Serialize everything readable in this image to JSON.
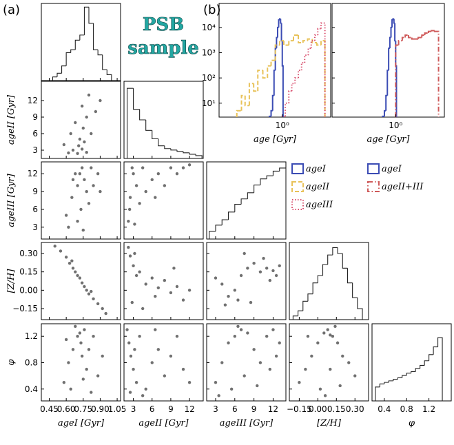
{
  "figure": {
    "panel_a": "(a)",
    "panel_b": "(b)",
    "title_lines": [
      "PSB",
      "sample"
    ]
  },
  "chart_data": [
    {
      "type": "histogram",
      "bins": [
        0.48,
        0.52,
        0.56,
        0.6,
        0.64,
        0.68,
        0.72,
        0.76,
        0.8,
        0.84,
        0.88,
        0.92,
        0.96,
        1.0
      ],
      "values": [
        5,
        10,
        20,
        38,
        42,
        55,
        62,
        100,
        78,
        42,
        35,
        15,
        8
      ],
      "xlim": [
        0.38,
        1.08
      ],
      "ylim": [
        0,
        105
      ],
      "color": "#222222"
    },
    {
      "type": "scatter",
      "x": [
        0.62,
        0.66,
        0.7,
        0.74,
        0.78,
        0.72,
        0.75,
        0.78,
        0.74,
        0.68,
        0.82,
        0.86,
        0.58,
        0.9,
        0.64,
        0.71,
        0.76,
        0.8
      ],
      "y": [
        2.5,
        3.0,
        2.4,
        3.2,
        2.6,
        5.0,
        7.0,
        9.0,
        11.0,
        8.0,
        6.0,
        10.0,
        4.0,
        12.0,
        6.0,
        3.8,
        4.5,
        13.0
      ],
      "xlim": [
        0.38,
        1.08
      ],
      "ylim": [
        1.5,
        15.5
      ],
      "yticks": [
        3,
        6,
        9,
        12
      ],
      "y_label": "ageII [Gyr]",
      "color": "#333333"
    },
    {
      "type": "histogram",
      "bins": [
        2,
        3,
        4,
        5,
        6,
        7,
        8,
        9,
        10,
        11,
        12,
        13,
        14
      ],
      "values": [
        100,
        70,
        55,
        40,
        28,
        18,
        14,
        12,
        10,
        8,
        6,
        4
      ],
      "xlim": [
        1.5,
        14.2
      ],
      "ylim": [
        0,
        110
      ],
      "color": "#222222"
    },
    {
      "type": "scatter",
      "x": [
        0.6,
        0.65,
        0.7,
        0.72,
        0.74,
        0.76,
        0.78,
        0.68,
        0.8,
        0.84,
        0.88,
        0.62,
        0.73,
        0.7,
        0.66,
        0.82,
        0.75,
        0.9
      ],
      "y": [
        5,
        8,
        10,
        12,
        13,
        11,
        9,
        12,
        7,
        10,
        12,
        3,
        6,
        4,
        11,
        13,
        2.5,
        9
      ],
      "xlim": [
        0.38,
        1.08
      ],
      "ylim": [
        1,
        14
      ],
      "yticks": [
        3,
        6,
        9,
        12
      ],
      "y_label": "ageIII [Gyr]",
      "color": "#333333"
    },
    {
      "type": "scatter",
      "x": [
        2.2,
        2.5,
        3,
        2.8,
        3.5,
        4,
        5,
        6,
        7,
        8,
        9,
        10,
        11,
        2.4,
        3.2,
        4.5,
        6.5,
        12
      ],
      "y": [
        4,
        8,
        12,
        13,
        10,
        7,
        9,
        11,
        12,
        10,
        13,
        12,
        13,
        6,
        3.5,
        13,
        8,
        13.5
      ],
      "xlim": [
        1.5,
        14.2
      ],
      "ylim": [
        1,
        14
      ],
      "color": "#333333"
    },
    {
      "type": "histogram",
      "bins": [
        2,
        3,
        4,
        5,
        6,
        7,
        8,
        9,
        10,
        11,
        12,
        13,
        14
      ],
      "values": [
        10,
        18,
        25,
        35,
        45,
        52,
        60,
        70,
        78,
        82,
        88,
        92
      ],
      "xlim": [
        1.6,
        14
      ],
      "ylim": [
        0,
        100
      ],
      "color": "#222222"
    },
    {
      "type": "scatter",
      "x": [
        0.5,
        0.55,
        0.6,
        0.63,
        0.66,
        0.68,
        0.7,
        0.72,
        0.74,
        0.76,
        0.78,
        0.8,
        0.84,
        0.88,
        0.92,
        0.95,
        0.65,
        0.82
      ],
      "y": [
        0.36,
        0.32,
        0.27,
        0.22,
        0.18,
        0.15,
        0.12,
        0.1,
        0.06,
        0.03,
        0.0,
        -0.03,
        -0.07,
        -0.11,
        -0.15,
        -0.19,
        0.24,
        -0.01
      ],
      "xlim": [
        0.38,
        1.08
      ],
      "ylim": [
        -0.24,
        0.39
      ],
      "yticks": [
        {
          "value": -0.15,
          "label": "−0.15"
        },
        {
          "value": 0,
          "label": "0.00"
        },
        0.15,
        {
          "value": 0.3,
          "label": "0.30"
        }
      ],
      "y_label": "[Z/H]",
      "color": "#333333"
    },
    {
      "type": "scatter",
      "x": [
        2.2,
        2.5,
        3,
        3.5,
        4,
        5,
        6,
        7,
        8,
        9,
        10,
        11,
        12,
        2.8,
        4.5,
        6.5,
        9.5,
        3.2
      ],
      "y": [
        0.35,
        0.28,
        0.2,
        0.12,
        0.15,
        0.05,
        0.1,
        0.02,
        0.08,
        -0.02,
        0.03,
        -0.08,
        0.0,
        -0.1,
        -0.15,
        -0.05,
        0.18,
        0.3
      ],
      "xlim": [
        1.5,
        14.2
      ],
      "ylim": [
        -0.24,
        0.39
      ],
      "color": "#333333"
    },
    {
      "type": "scatter",
      "x": [
        3,
        4,
        5,
        6,
        7,
        8,
        9,
        10,
        11,
        12,
        12.5,
        13,
        4.5,
        6.5,
        8.5,
        10.5,
        11.5,
        7.5
      ],
      "y": [
        0.1,
        0.05,
        -0.05,
        0.0,
        0.12,
        0.18,
        0.22,
        0.15,
        0.18,
        0.16,
        0.12,
        0.2,
        -0.12,
        -0.08,
        -0.1,
        0.26,
        0.08,
        0.3
      ],
      "xlim": [
        1.6,
        14
      ],
      "ylim": [
        -0.24,
        0.39
      ],
      "color": "#333333"
    },
    {
      "type": "histogram",
      "bins": [
        -0.2,
        -0.16,
        -0.12,
        -0.08,
        -0.04,
        0.0,
        0.04,
        0.08,
        0.12,
        0.16,
        0.2,
        0.24,
        0.28,
        0.32,
        0.36
      ],
      "values": [
        5,
        12,
        25,
        35,
        50,
        60,
        75,
        88,
        98,
        90,
        70,
        50,
        30,
        15
      ],
      "xlim": [
        -0.23,
        0.41
      ],
      "ylim": [
        0,
        105
      ],
      "color": "#222222"
    },
    {
      "type": "scatter",
      "x": [
        0.58,
        0.62,
        0.66,
        0.7,
        0.72,
        0.73,
        0.74,
        0.76,
        0.78,
        0.8,
        0.84,
        0.88,
        0.92,
        0.64,
        0.68,
        0.75,
        0.82,
        0.6
      ],
      "y": [
        0.5,
        0.8,
        1.0,
        1.2,
        1.25,
        1.1,
        0.9,
        1.3,
        0.7,
        1.0,
        1.2,
        0.6,
        0.9,
        0.4,
        1.35,
        0.55,
        0.35,
        1.15
      ],
      "xlim": [
        0.38,
        1.08
      ],
      "ylim": [
        0.22,
        1.39
      ],
      "xticks": [
        0.45,
        {
          "value": 0.6,
          "label": "0.60"
        },
        0.75,
        {
          "value": 0.9,
          "label": "0.90"
        },
        1.05
      ],
      "yticks": [
        0.4,
        0.8,
        1.2
      ],
      "x_label": "ageI [Gyr]",
      "y_label": "φ",
      "color": "#333333"
    },
    {
      "type": "scatter",
      "x": [
        2,
        2.3,
        2.6,
        3,
        3.5,
        4,
        5,
        6,
        7,
        8,
        9,
        10,
        11,
        12,
        2.5,
        4.5,
        6.5,
        3.2
      ],
      "y": [
        1.3,
        1.1,
        0.9,
        0.7,
        0.5,
        1.2,
        0.4,
        0.8,
        1.0,
        0.6,
        0.9,
        1.2,
        0.7,
        0.5,
        0.35,
        0.3,
        1.3,
        1.0
      ],
      "xlim": [
        1.5,
        14.2
      ],
      "ylim": [
        0.22,
        1.39
      ],
      "xticks": [
        3,
        6,
        9,
        12
      ],
      "x_label": "ageII [Gyr]",
      "color": "#333333"
    },
    {
      "type": "scatter",
      "x": [
        3,
        4,
        5,
        6,
        7,
        8,
        9,
        10,
        11,
        12,
        13,
        3.5,
        5.5,
        7.5,
        9.5,
        11.5,
        12.5,
        6.5
      ],
      "y": [
        0.5,
        0.8,
        1.1,
        1.2,
        1.3,
        1.25,
        1.0,
        0.8,
        1.2,
        1.3,
        1.1,
        0.3,
        0.4,
        0.6,
        0.45,
        0.7,
        0.9,
        1.35
      ],
      "xlim": [
        1.6,
        14
      ],
      "ylim": [
        0.22,
        1.39
      ],
      "xticks": [
        3,
        6,
        9,
        12
      ],
      "x_label": "ageIII [Gyr]",
      "color": "#333333"
    },
    {
      "type": "scatter",
      "x": [
        -0.15,
        -0.1,
        -0.05,
        0.0,
        0.05,
        0.08,
        0.1,
        0.12,
        0.14,
        0.16,
        0.2,
        0.25,
        0.3,
        0.02,
        0.06,
        0.18,
        -0.08,
        0.1
      ],
      "y": [
        0.5,
        0.7,
        0.9,
        1.1,
        1.25,
        1.3,
        1.22,
        1.2,
        1.35,
        1.1,
        0.9,
        0.8,
        0.6,
        0.4,
        0.3,
        0.45,
        1.2,
        0.7
      ],
      "xlim": [
        -0.23,
        0.41
      ],
      "ylim": [
        0.22,
        1.39
      ],
      "xticks": [
        {
          "value": -0.15,
          "label": "−0.15"
        },
        {
          "value": 0,
          "label": "0.00"
        },
        0.15,
        {
          "value": 0.3,
          "label": "0.30"
        }
      ],
      "x_label": "[Z/H]",
      "color": "#333333"
    },
    {
      "type": "histogram",
      "bins": [
        0.24,
        0.32,
        0.4,
        0.48,
        0.56,
        0.64,
        0.72,
        0.8,
        0.88,
        0.96,
        1.04,
        1.12,
        1.2,
        1.28,
        1.36,
        1.44
      ],
      "values": [
        18,
        22,
        24,
        26,
        28,
        30,
        33,
        36,
        38,
        42,
        46,
        52,
        60,
        70,
        82
      ],
      "xlim": [
        0.18,
        1.6
      ],
      "ylim": [
        0,
        100
      ],
      "xticks": [
        0.4,
        0.8,
        1.2
      ],
      "x_label": "φ",
      "color": "#222222"
    },
    {
      "type": "step",
      "xscale": "log",
      "yscale": "log",
      "xlim": [
        0.02,
        20
      ],
      "ylim": [
        2.8,
        90000
      ],
      "x_label": "age [Gyr]",
      "xticks": [
        {
          "value": 1,
          "label": "10⁰"
        }
      ],
      "yticks": [
        {
          "value": 10,
          "label": "10¹"
        },
        {
          "value": 100,
          "label": "10²"
        },
        {
          "value": 1000,
          "label": "10³"
        },
        {
          "value": 10000,
          "label": "10⁴"
        }
      ],
      "series": [
        {
          "name": "ageI",
          "color": "#3b4cb4",
          "linestyle": "solid",
          "bins": [
            0.45,
            0.5,
            0.55,
            0.6,
            0.65,
            0.7,
            0.75,
            0.8,
            0.85,
            0.9,
            0.95,
            1.0,
            1.05
          ],
          "values": [
            3,
            5,
            20,
            200,
            1500,
            4000,
            10000,
            20000,
            22000,
            15000,
            3000,
            300
          ]
        },
        {
          "name": "ageII",
          "color": "#e8c25a",
          "linestyle": "dashed",
          "bins": [
            0.06,
            0.08,
            0.1,
            0.13,
            0.17,
            0.22,
            0.3,
            0.4,
            0.5,
            0.65,
            0.85,
            1.1,
            1.5,
            2,
            2.7,
            3.6,
            4.8,
            6.4,
            8.5,
            11,
            14
          ],
          "values": [
            5,
            20,
            8,
            60,
            30,
            200,
            100,
            300,
            500,
            2000,
            3000,
            2000,
            3000,
            5000,
            2500,
            3000,
            3500,
            2500,
            2000,
            3000
          ]
        },
        {
          "name": "ageIII",
          "color": "#d9506e",
          "linestyle": "dotted",
          "bins": [
            1.0,
            1.2,
            1.5,
            1.8,
            2.2,
            2.7,
            3.3,
            4,
            5,
            6,
            7.5,
            9,
            11,
            14
          ],
          "values": [
            3,
            10,
            30,
            60,
            100,
            200,
            400,
            800,
            1500,
            3000,
            5000,
            9000,
            15000
          ]
        }
      ]
    },
    {
      "type": "step",
      "xscale": "log",
      "yscale": "log",
      "xlim": [
        0.02,
        20
      ],
      "ylim": [
        2.8,
        90000
      ],
      "x_label": "age [Gyr]",
      "xticks": [
        {
          "value": 1,
          "label": "10⁰"
        }
      ],
      "series": [
        {
          "name": "ageI",
          "color": "#3b4cb4",
          "linestyle": "solid",
          "bins": [
            0.45,
            0.5,
            0.55,
            0.6,
            0.65,
            0.7,
            0.75,
            0.8,
            0.85,
            0.9,
            0.95,
            1.0,
            1.05
          ],
          "values": [
            3,
            5,
            20,
            200,
            1500,
            4000,
            10000,
            20000,
            22000,
            15000,
            3000,
            300
          ]
        },
        {
          "name": "ageII+III",
          "color": "#cf5a5a",
          "linestyle": "dashdot",
          "bins": [
            1.0,
            1.2,
            1.5,
            1.8,
            2.2,
            2.7,
            3.3,
            4,
            5,
            6,
            7.5,
            9,
            11,
            14
          ],
          "values": [
            2000,
            3000,
            4000,
            5000,
            4000,
            3500,
            3500,
            4000,
            5000,
            6000,
            7000,
            7500,
            7000
          ]
        }
      ]
    }
  ]
}
